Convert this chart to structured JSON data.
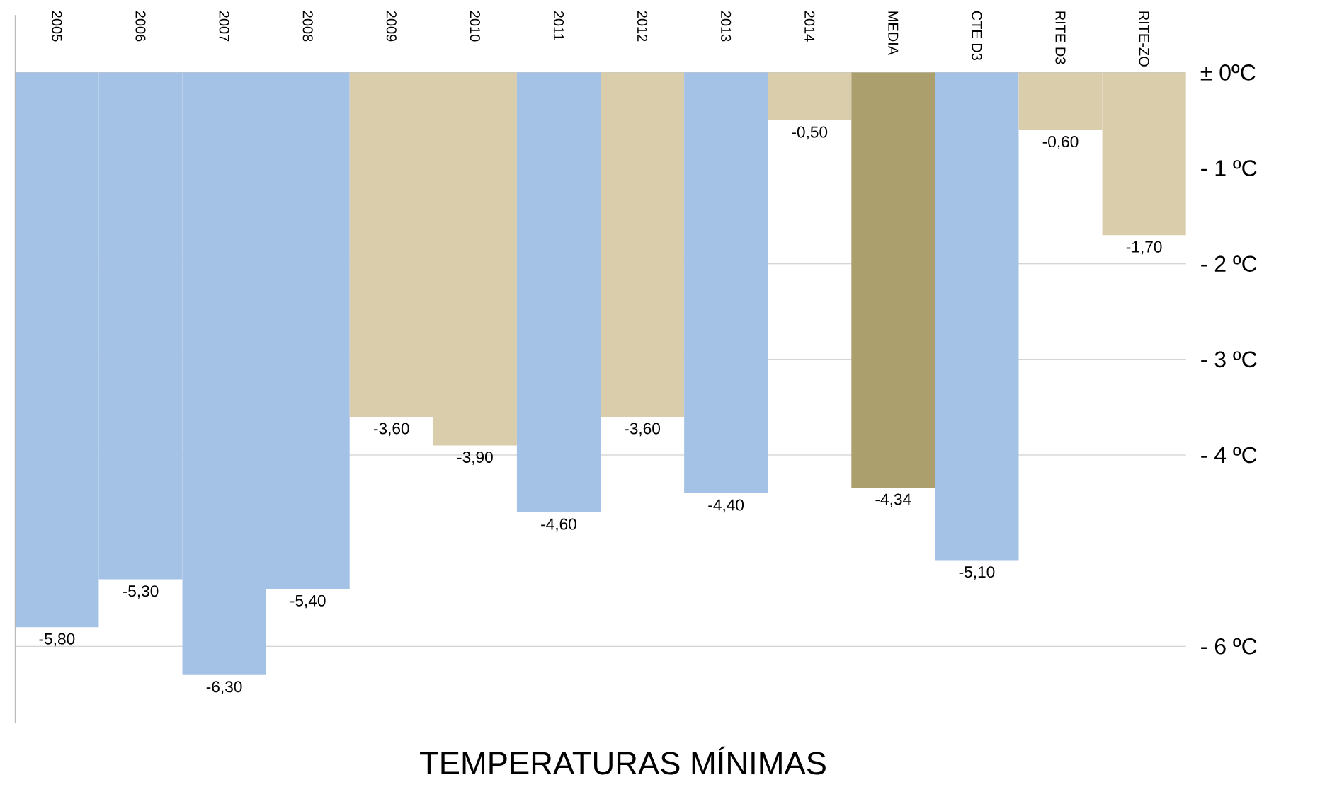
{
  "chart_data": {
    "type": "bar",
    "title": "TEMPERATURAS MÍNIMAS",
    "categories": [
      "2005",
      "2006",
      "2007",
      "2008",
      "2009",
      "2010",
      "2011",
      "2012",
      "2013",
      "2014",
      "MEDIA",
      "CTE D3",
      "RITE D3",
      "RITE-ZO"
    ],
    "values": [
      -5.8,
      -5.3,
      -6.3,
      -5.4,
      -3.6,
      -3.9,
      -4.6,
      -3.6,
      -4.4,
      -0.5,
      -4.34,
      -5.1,
      -0.6,
      -1.7
    ],
    "value_labels": [
      "-5,80",
      "-5,30",
      "-6,30",
      "-5,40",
      "-3,60",
      "-3,90",
      "-4,60",
      "-3,60",
      "-4,40",
      "-0,50",
      "-4,34",
      "-5,10",
      "-0,60",
      "-1,70"
    ],
    "colors": [
      "#a4c2e6",
      "#a4c2e6",
      "#a4c2e6",
      "#a4c2e6",
      "#d9cdab",
      "#d9cdab",
      "#a4c2e6",
      "#d9cdab",
      "#a4c2e6",
      "#d9cdab",
      "#ab9f6e",
      "#a4c2e6",
      "#d9cdab",
      "#d9cdab"
    ],
    "ylim": [
      -6.8,
      0.6
    ],
    "yticks": [
      {
        "value": 0,
        "label": "± 0ºC"
      },
      {
        "value": -1,
        "label": "- 1 ºC"
      },
      {
        "value": -2,
        "label": "- 2 ºC"
      },
      {
        "value": -3,
        "label": "- 3 ºC"
      },
      {
        "value": -4,
        "label": "- 4 ºC"
      },
      {
        "value": -6,
        "label": "- 6 ºC"
      }
    ],
    "grid": "y"
  }
}
